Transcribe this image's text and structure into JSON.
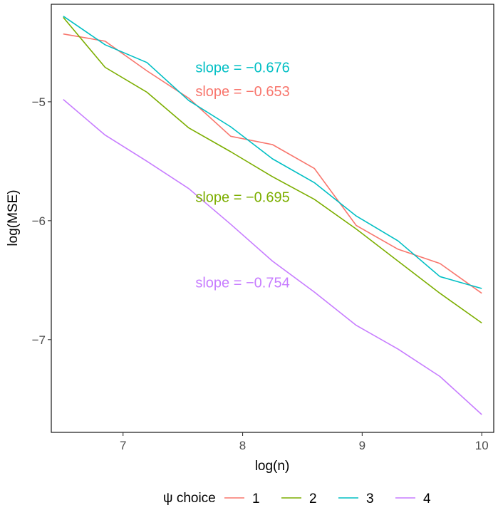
{
  "chart_data": {
    "type": "line",
    "xlabel": "log(n)",
    "ylabel": "log(MSE)",
    "xlim": [
      6.4,
      10.1
    ],
    "ylim": [
      -7.78,
      -4.18
    ],
    "x_ticks": [
      7,
      8,
      9,
      10
    ],
    "x_tick_labels": [
      "7",
      "8",
      "9",
      "10"
    ],
    "y_ticks": [
      -5,
      -6,
      -7
    ],
    "y_tick_labels": [
      "−5",
      "−6",
      "−7"
    ],
    "grid": false,
    "legend": {
      "title": "ψ choice",
      "position": "bottom",
      "entries": [
        "1",
        "2",
        "3",
        "4"
      ]
    },
    "x": [
      6.5,
      6.85,
      7.2,
      7.55,
      7.9,
      8.25,
      8.6,
      8.95,
      9.3,
      9.65,
      10.0
    ],
    "series": [
      {
        "name": "1",
        "color": "#F8766D",
        "values": [
          -4.43,
          -4.49,
          -4.74,
          -4.97,
          -5.29,
          -5.36,
          -5.56,
          -6.04,
          -6.24,
          -6.36,
          -6.61
        ]
      },
      {
        "name": "2",
        "color": "#7CAE00",
        "values": [
          -4.29,
          -4.71,
          -4.92,
          -5.22,
          -5.42,
          -5.63,
          -5.82,
          -6.07,
          -6.34,
          -6.61,
          -6.86
        ]
      },
      {
        "name": "3",
        "color": "#00BFC4",
        "values": [
          -4.28,
          -4.52,
          -4.67,
          -4.99,
          -5.21,
          -5.48,
          -5.68,
          -5.96,
          -6.17,
          -6.47,
          -6.57
        ]
      },
      {
        "name": "4",
        "color": "#C77CFF",
        "values": [
          -4.98,
          -5.28,
          -5.5,
          -5.73,
          -6.03,
          -6.34,
          -6.6,
          -6.88,
          -7.08,
          -7.31,
          -7.63
        ]
      }
    ],
    "annotations": [
      {
        "text": "slope = −0.676",
        "x": 8.0,
        "y": -4.72,
        "color": "#00BFC4"
      },
      {
        "text": "slope = −0.653",
        "x": 8.0,
        "y": -4.92,
        "color": "#F8766D"
      },
      {
        "text": "slope = −0.695",
        "x": 8.0,
        "y": -5.81,
        "color": "#7CAE00"
      },
      {
        "text": "slope = −0.754",
        "x": 8.0,
        "y": -6.53,
        "color": "#C77CFF"
      }
    ]
  }
}
